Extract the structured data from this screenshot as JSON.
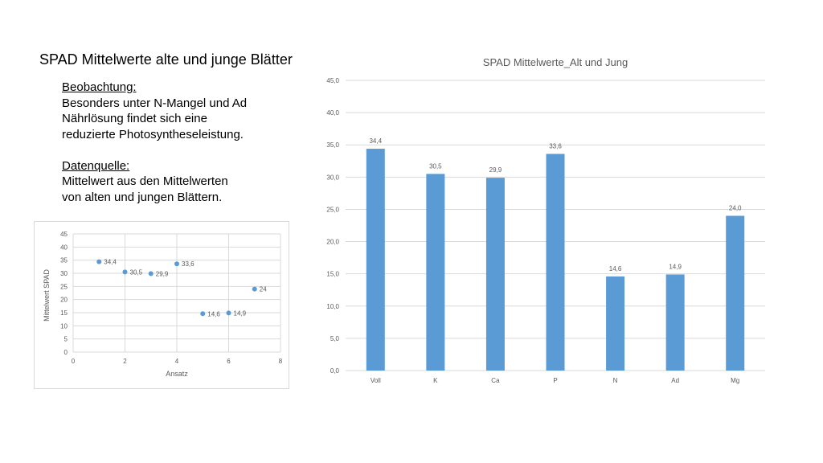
{
  "slide": {
    "title": "SPAD Mittelwerte alte und junge Blätter",
    "observation_heading": "Beobachtung:",
    "observation_lines": [
      "Besonders unter N-Mangel und Ad",
      "Nährlösung findet sich eine",
      "reduzierte Photosyntheseleistung."
    ],
    "source_heading": "Datenquelle:",
    "source_lines": [
      "Mittelwert aus den Mittelwerten",
      "von alten und jungen Blättern."
    ]
  },
  "colors": {
    "series": "#5b9bd5",
    "grid": "#d9d9d9",
    "text": "#595959"
  },
  "chart_data": [
    {
      "type": "bar",
      "title": "SPAD Mittelwerte_Alt und Jung",
      "categories": [
        "Voll",
        "K",
        "Ca",
        "P",
        "N",
        "Ad",
        "Mg"
      ],
      "values": [
        34.4,
        30.5,
        29.9,
        33.6,
        14.6,
        14.9,
        24.0
      ],
      "data_labels": [
        "34,4",
        "30,5",
        "29,9",
        "33,6",
        "14,6",
        "14,9",
        "24,0"
      ],
      "ylim": [
        0,
        45
      ],
      "yticks": [
        "0,0",
        "5,0",
        "10,0",
        "15,0",
        "20,0",
        "25,0",
        "30,0",
        "35,0",
        "40,0",
        "45,0"
      ],
      "xlabel": "",
      "ylabel": "",
      "grid": true
    },
    {
      "type": "scatter",
      "title": "",
      "x": [
        1,
        2,
        3,
        4,
        5,
        6,
        7
      ],
      "y": [
        34.4,
        30.5,
        29.9,
        33.6,
        14.6,
        14.9,
        24
      ],
      "data_labels": [
        "34,4",
        "30,5",
        "29,9",
        "33,6",
        "14,6",
        "14,9",
        "24"
      ],
      "xlim": [
        0,
        8
      ],
      "ylim": [
        0,
        45
      ],
      "xticks": [
        "0",
        "2",
        "4",
        "6",
        "8"
      ],
      "yticks": [
        "0",
        "5",
        "10",
        "15",
        "20",
        "25",
        "30",
        "35",
        "40",
        "45"
      ],
      "xlabel": "Ansatz",
      "ylabel": "Mittelwert SPAD",
      "grid": true
    }
  ]
}
